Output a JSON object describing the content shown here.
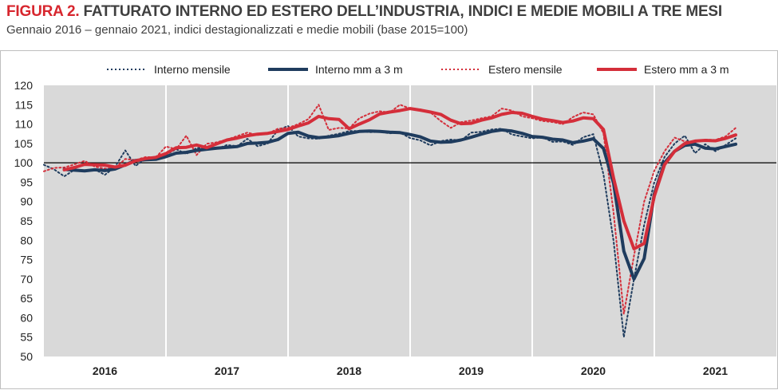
{
  "header": {
    "figure_label": "FIGURA 2.",
    "title": "FATTURATO INTERNO ED ESTERO DELL’INDUSTRIA, INDICI E MEDIE MOBILI A TRE MESI",
    "subtitle": "Gennaio 2016 – gennaio 2021, indici destagionalizzati e medie mobili (base 2015=100)"
  },
  "colors": {
    "interno": "#1f3c5e",
    "estero": "#d42e3a",
    "plot_bg": "#d9d9d9",
    "baseline": "#000000"
  },
  "chart_data": {
    "type": "line",
    "title": "FATTURATO INTERNO ED ESTERO DELL’INDUSTRIA, INDICI E MEDIE MOBILI A TRE MESI",
    "xlabel": "",
    "ylabel": "",
    "ylim": [
      50,
      120
    ],
    "yticks": [
      50,
      55,
      60,
      65,
      70,
      75,
      80,
      85,
      90,
      95,
      100,
      105,
      110,
      115,
      120
    ],
    "xlim": [
      0,
      72
    ],
    "year_labels": [
      "2016",
      "2017",
      "2018",
      "2019",
      "2020",
      "2021"
    ],
    "baseline": 100,
    "x_unit": "months since January 2016 (0 = Jan 2016)",
    "series": [
      {
        "name": "Interno mensile",
        "style": "dotted",
        "values": [
          99.5,
          98.3,
          96.5,
          98.2,
          97.8,
          98.3,
          96.9,
          99.0,
          103.2,
          99.2,
          101.0,
          101.6,
          102.1,
          103.5,
          102.3,
          103.8,
          103.9,
          103.6,
          104.6,
          104.3,
          106.2,
          104.3,
          105.0,
          108.5,
          109.5,
          106.8,
          106.3,
          106.2,
          107.0,
          107.5,
          108.2,
          108.2,
          107.9,
          108.0,
          107.6,
          107.8,
          106.4,
          105.8,
          104.5,
          105.6,
          106.0,
          105.8,
          107.8,
          108.0,
          108.6,
          108.8,
          107.3,
          106.8,
          106.3,
          106.6,
          105.4,
          105.5,
          104.6,
          106.6,
          107.4,
          97.0,
          79.7,
          55.0,
          70.0,
          84.0,
          95.0,
          101.5,
          105.0,
          107.0,
          102.5,
          104.8,
          103.0,
          104.6,
          106.3
        ]
      },
      {
        "name": "Interno mm a 3 m",
        "style": "solid",
        "values": [
          null,
          null,
          98.3,
          98.1,
          97.9,
          98.2,
          98.0,
          98.4,
          99.5,
          100.6,
          100.8,
          100.9,
          101.6,
          102.5,
          102.7,
          103.2,
          103.5,
          103.8,
          104.0,
          104.2,
          105.0,
          105.1,
          105.3,
          106.0,
          107.6,
          107.9,
          106.9,
          106.5,
          106.7,
          107.0,
          107.6,
          108.1,
          108.2,
          108.1,
          107.9,
          107.8,
          107.3,
          106.7,
          105.6,
          105.3,
          105.4,
          105.9,
          106.6,
          107.4,
          108.1,
          108.5,
          108.2,
          107.6,
          106.8,
          106.6,
          106.1,
          105.9,
          105.2,
          105.6,
          106.2,
          103.7,
          94.7,
          77.2,
          70.0,
          75.3,
          92.0,
          100.0,
          103.0,
          104.5,
          104.8,
          103.8,
          103.6,
          104.2,
          104.8
        ]
      },
      {
        "name": "Estero mensile",
        "style": "dotted",
        "values": [
          97.8,
          98.7,
          98.8,
          99.6,
          100.5,
          99.0,
          98.5,
          98.6,
          101.0,
          100.7,
          101.5,
          101.4,
          104.2,
          103.5,
          107.0,
          102.0,
          104.9,
          105.3,
          106.0,
          106.9,
          107.8,
          107.2,
          107.5,
          108.8,
          109.0,
          110.0,
          111.3,
          115.0,
          108.5,
          109.0,
          108.9,
          111.5,
          112.7,
          113.3,
          113.0,
          115.0,
          114.0,
          113.8,
          113.0,
          110.8,
          109.0,
          110.5,
          110.9,
          111.5,
          112.0,
          114.0,
          113.5,
          112.0,
          111.5,
          110.8,
          110.5,
          110.0,
          111.8,
          113.0,
          112.5,
          107.6,
          87.0,
          61.0,
          76.0,
          90.0,
          98.0,
          103.0,
          106.5,
          105.5,
          105.3,
          106.0,
          105.9,
          106.8,
          109.0
        ]
      },
      {
        "name": "Estero mm a 3 m",
        "style": "solid",
        "values": [
          null,
          null,
          98.2,
          98.8,
          99.6,
          99.5,
          99.4,
          98.9,
          99.4,
          100.5,
          101.1,
          101.4,
          102.4,
          103.9,
          104.0,
          104.6,
          103.9,
          104.9,
          105.9,
          106.4,
          107.0,
          107.4,
          107.6,
          108.1,
          108.6,
          109.5,
          110.3,
          112.0,
          111.4,
          111.2,
          108.8,
          110.0,
          111.1,
          112.6,
          113.1,
          113.5,
          114.0,
          113.6,
          113.1,
          112.5,
          111.0,
          110.1,
          110.2,
          111.0,
          111.6,
          112.5,
          113.0,
          112.8,
          112.0,
          111.3,
          110.9,
          110.4,
          110.8,
          111.6,
          111.4,
          108.6,
          96.0,
          85.0,
          77.8,
          79.2,
          91.4,
          99.5,
          103.0,
          105.0,
          105.6,
          105.8,
          105.7,
          106.3,
          107.2
        ]
      }
    ]
  },
  "legend": {
    "interno_mensile": "Interno mensile",
    "interno_mm": "Interno mm a 3 m",
    "estero_mensile": "Estero mensile",
    "estero_mm": "Estero mm a 3 m"
  }
}
